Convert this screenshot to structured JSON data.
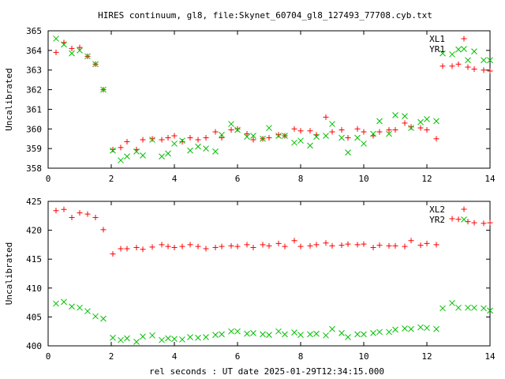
{
  "page_title": "HIRES continuum, gl8, file:Skynet_60704_gl8_127493_77708.cyb.txt",
  "xlabel": "rel seconds : UT date 2025-01-29T12:34:15.000",
  "colors": {
    "plus": "#ff0000",
    "cross": "#00c000",
    "axis": "#000000"
  },
  "chart_data": [
    {
      "type": "scatter",
      "title": "HIRES continuum, gl8, file:Skynet_60704_gl8_127493_77708.cyb.txt",
      "xlabel": "",
      "ylabel": "Uncalibrated",
      "xlim": [
        0,
        14
      ],
      "ylim": [
        358,
        365
      ],
      "xticks": [
        "0",
        "2",
        "4",
        "6",
        "8",
        "10",
        "12",
        "14"
      ],
      "yticks": [
        "358",
        "359",
        "360",
        "361",
        "362",
        "363",
        "364",
        "365"
      ],
      "legend_position": "top-right",
      "series": [
        {
          "name": "XL1",
          "marker": "plus",
          "x": [
            0.25,
            0.5,
            0.75,
            1.0,
            1.25,
            1.5,
            1.75,
            2.05,
            2.3,
            2.5,
            2.8,
            3.0,
            3.3,
            3.6,
            3.8,
            4.0,
            4.25,
            4.5,
            4.75,
            5.0,
            5.3,
            5.5,
            5.8,
            6.0,
            6.3,
            6.5,
            6.8,
            7.0,
            7.3,
            7.5,
            7.8,
            8.0,
            8.3,
            8.5,
            8.8,
            9.0,
            9.3,
            9.5,
            9.8,
            10.0,
            10.3,
            10.5,
            10.8,
            11.0,
            11.3,
            11.5,
            11.8,
            12.0,
            12.3,
            12.5,
            12.8,
            13.0,
            13.3,
            13.5,
            13.8,
            14.0
          ],
          "y": [
            363.9,
            364.4,
            364.1,
            364.15,
            363.7,
            363.3,
            362.0,
            358.95,
            359.05,
            359.35,
            358.95,
            359.45,
            359.5,
            359.45,
            359.55,
            359.65,
            359.35,
            359.55,
            359.45,
            359.55,
            359.85,
            359.55,
            359.95,
            360.0,
            359.75,
            359.45,
            359.5,
            359.55,
            359.7,
            359.65,
            360.0,
            359.9,
            359.9,
            359.7,
            360.6,
            359.85,
            359.95,
            359.55,
            360.0,
            359.85,
            359.65,
            359.85,
            359.95,
            359.95,
            360.3,
            360.1,
            360.05,
            359.95,
            359.5,
            363.2,
            363.2,
            363.3,
            363.15,
            363.05,
            363.0,
            362.95
          ]
        },
        {
          "name": "YR1",
          "marker": "cross",
          "x": [
            0.25,
            0.5,
            0.75,
            1.0,
            1.25,
            1.5,
            1.75,
            2.05,
            2.3,
            2.5,
            2.8,
            3.0,
            3.3,
            3.6,
            3.8,
            4.0,
            4.25,
            4.5,
            4.75,
            5.0,
            5.3,
            5.5,
            5.8,
            6.0,
            6.3,
            6.5,
            6.8,
            7.0,
            7.3,
            7.5,
            7.8,
            8.0,
            8.3,
            8.5,
            8.8,
            9.0,
            9.3,
            9.5,
            9.8,
            10.0,
            10.3,
            10.5,
            10.8,
            11.0,
            11.3,
            11.5,
            11.8,
            12.0,
            12.3,
            12.5,
            12.8,
            13.0,
            13.3,
            13.5,
            13.8,
            14.0
          ],
          "y": [
            364.6,
            364.3,
            363.85,
            364.0,
            363.7,
            363.3,
            362.0,
            358.9,
            358.4,
            358.6,
            358.85,
            358.65,
            359.45,
            358.6,
            358.75,
            359.25,
            359.4,
            358.9,
            359.1,
            359.0,
            358.85,
            359.7,
            360.25,
            359.95,
            359.6,
            359.65,
            359.5,
            360.05,
            359.65,
            359.65,
            359.3,
            359.4,
            359.15,
            359.6,
            359.65,
            360.25,
            359.55,
            358.8,
            359.55,
            359.25,
            359.75,
            360.4,
            359.75,
            360.7,
            360.65,
            360.05,
            360.35,
            360.5,
            360.4,
            363.85,
            363.8,
            364.05,
            363.5,
            363.95,
            363.5,
            363.5
          ]
        }
      ]
    },
    {
      "type": "scatter",
      "title": "",
      "xlabel": "rel seconds : UT date 2025-01-29T12:34:15.000",
      "ylabel": "Uncalibrated",
      "xlim": [
        0,
        14
      ],
      "ylim": [
        400,
        425
      ],
      "xticks": [
        "0",
        "2",
        "4",
        "6",
        "8",
        "10",
        "12",
        "14"
      ],
      "yticks": [
        "400",
        "405",
        "410",
        "415",
        "420",
        "425"
      ],
      "legend_position": "top-right",
      "series": [
        {
          "name": "XL2",
          "marker": "plus",
          "x": [
            0.25,
            0.5,
            0.75,
            1.0,
            1.25,
            1.5,
            1.75,
            2.05,
            2.3,
            2.5,
            2.8,
            3.0,
            3.3,
            3.6,
            3.8,
            4.0,
            4.25,
            4.5,
            4.75,
            5.0,
            5.3,
            5.5,
            5.8,
            6.0,
            6.3,
            6.5,
            6.8,
            7.0,
            7.3,
            7.5,
            7.8,
            8.0,
            8.3,
            8.5,
            8.8,
            9.0,
            9.3,
            9.5,
            9.8,
            10.0,
            10.3,
            10.5,
            10.8,
            11.0,
            11.3,
            11.5,
            11.8,
            12.0,
            12.3,
            12.8,
            13.0,
            13.3,
            13.5,
            13.8,
            14.0
          ],
          "y": [
            423.4,
            423.6,
            422.2,
            423.0,
            422.8,
            422.2,
            420.1,
            415.9,
            416.8,
            416.8,
            417.0,
            416.7,
            417.1,
            417.5,
            417.2,
            417.0,
            417.2,
            417.5,
            417.2,
            416.8,
            417.0,
            417.2,
            417.3,
            417.2,
            417.5,
            417.0,
            417.5,
            417.3,
            417.7,
            417.2,
            418.2,
            417.2,
            417.3,
            417.5,
            417.8,
            417.3,
            417.4,
            417.6,
            417.5,
            417.6,
            417.0,
            417.4,
            417.3,
            417.3,
            417.2,
            418.2,
            417.4,
            417.7,
            417.5,
            422.0,
            421.9,
            421.5,
            421.3,
            421.2,
            421.3
          ]
        },
        {
          "name": "YR2",
          "marker": "cross",
          "x": [
            0.25,
            0.5,
            0.75,
            1.0,
            1.25,
            1.5,
            1.75,
            2.05,
            2.3,
            2.5,
            2.8,
            3.0,
            3.3,
            3.6,
            3.8,
            4.0,
            4.25,
            4.5,
            4.75,
            5.0,
            5.3,
            5.5,
            5.8,
            6.0,
            6.3,
            6.5,
            6.8,
            7.0,
            7.3,
            7.5,
            7.8,
            8.0,
            8.3,
            8.5,
            8.8,
            9.0,
            9.3,
            9.5,
            9.8,
            10.0,
            10.3,
            10.5,
            10.8,
            11.0,
            11.3,
            11.5,
            11.8,
            12.0,
            12.3,
            12.5,
            12.8,
            13.0,
            13.3,
            13.5,
            13.8,
            14.0
          ],
          "y": [
            407.3,
            407.6,
            406.8,
            406.6,
            406.0,
            405.1,
            404.7,
            401.4,
            401.0,
            401.3,
            400.7,
            401.6,
            401.8,
            401.0,
            401.3,
            401.2,
            401.1,
            401.5,
            401.4,
            401.5,
            401.9,
            402.0,
            402.5,
            402.5,
            402.1,
            402.2,
            402.0,
            401.9,
            402.5,
            402.0,
            402.3,
            401.9,
            402.0,
            402.1,
            401.8,
            402.9,
            402.2,
            401.5,
            402.0,
            402.0,
            402.2,
            402.4,
            402.4,
            402.8,
            403.0,
            402.9,
            403.2,
            403.1,
            402.9,
            406.5,
            407.4,
            406.6,
            406.6,
            406.6,
            406.5,
            406.1
          ]
        }
      ]
    }
  ]
}
